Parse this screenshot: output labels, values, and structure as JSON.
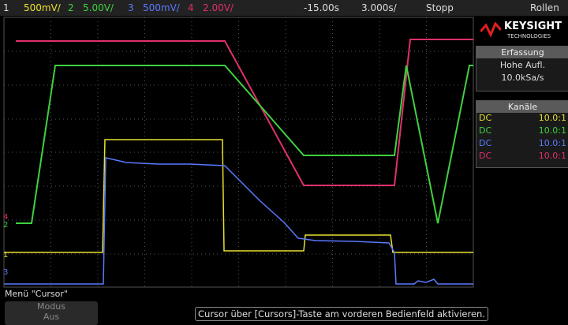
{
  "top_bar": {
    "channels": [
      {
        "number": "1",
        "scale": "500mV/"
      },
      {
        "number": "2",
        "scale": "5.00V/"
      },
      {
        "number": "3",
        "scale": "500mV/"
      },
      {
        "number": "4",
        "scale": "2.00V/"
      }
    ],
    "time_offset": "-15.00s",
    "time_scale": "3.000s/",
    "status": "Stopp",
    "mode": "Rollen"
  },
  "markers": [
    "4",
    "2",
    "1",
    "3"
  ],
  "panel": {
    "brand": "KEYSIGHT",
    "brand_sub": "TECHNOLOGIES",
    "acquisition": {
      "title": "Erfassung",
      "mode": "Hohe Aufl.",
      "rate": "10.0kSa/s"
    },
    "channels": {
      "title": "Kanäle",
      "rows": [
        {
          "coupling": "DC",
          "probe": "10.0:1"
        },
        {
          "coupling": "DC",
          "probe": "10.0:1"
        },
        {
          "coupling": "DC",
          "probe": "10.0:1"
        },
        {
          "coupling": "DC",
          "probe": "10.0:1"
        }
      ]
    }
  },
  "bottom": {
    "menu_title": "Menü \"Cursor\"",
    "softkey": {
      "label": "Modus",
      "value": "Aus"
    },
    "message": "Cursor über [Cursors]-Taste am vorderen Bedienfeld aktivieren."
  }
}
